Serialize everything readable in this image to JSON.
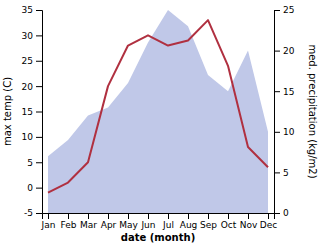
{
  "chart_data": {
    "type": "line",
    "categories": [
      "Jan",
      "Feb",
      "Mar",
      "Apr",
      "May",
      "Jun",
      "Jul",
      "Aug",
      "Sep",
      "Oct",
      "Nov",
      "Dec"
    ],
    "series": [
      {
        "type": "area",
        "axis": "y2",
        "color": "#c0c8e8",
        "values": [
          7,
          9,
          12,
          13,
          16,
          21,
          25,
          23,
          17,
          15,
          20,
          10
        ]
      },
      {
        "type": "line",
        "color": "#b03040",
        "values": [
          -1,
          1,
          5,
          20,
          28,
          30,
          28,
          29,
          33,
          24,
          8,
          4
        ]
      }
    ],
    "xlabel": "date (month)",
    "ylabel": "max temp (C)",
    "y2label": "med. precipitation (kg/m2)",
    "ylim": [
      -5,
      35
    ],
    "yticks": [
      -5,
      0,
      5,
      10,
      15,
      20,
      25,
      30,
      35
    ],
    "y2lim": [
      0,
      25
    ],
    "y2ticks": [
      0,
      5,
      10,
      15,
      20,
      25
    ],
    "grid": false
  }
}
